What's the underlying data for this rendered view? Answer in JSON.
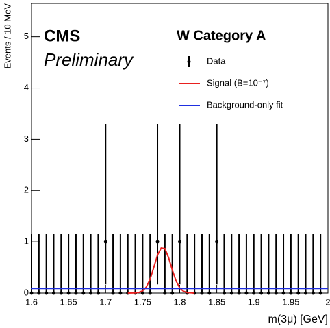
{
  "chart_data": {
    "type": "line",
    "texts": {
      "experiment": "CMS",
      "status": "Preliminary",
      "category": "W Category A"
    },
    "ylabel": "Events / 10 MeV",
    "xlabel": "m(3μ) [GeV]",
    "xlim": [
      1.6,
      2.0
    ],
    "ylim": [
      0,
      5.65
    ],
    "xticks": [
      1.6,
      1.65,
      1.7,
      1.75,
      1.8,
      1.85,
      1.9,
      1.95,
      2
    ],
    "yticks": [
      0,
      1,
      2,
      3,
      4,
      5
    ],
    "legend": "top-right",
    "series": [
      {
        "name": "Data",
        "type": "errorbar",
        "color": "#000000",
        "x": [
          1.6,
          1.61,
          1.62,
          1.63,
          1.64,
          1.65,
          1.66,
          1.67,
          1.68,
          1.69,
          1.7,
          1.71,
          1.72,
          1.73,
          1.74,
          1.75,
          1.76,
          1.77,
          1.78,
          1.79,
          1.8,
          1.81,
          1.82,
          1.83,
          1.84,
          1.85,
          1.86,
          1.87,
          1.88,
          1.89,
          1.9,
          1.91,
          1.92,
          1.93,
          1.94,
          1.95,
          1.96,
          1.97,
          1.98,
          1.99
        ],
        "values": [
          0,
          0,
          0,
          0,
          0,
          0,
          0,
          0,
          0,
          0,
          1,
          0,
          0,
          0,
          0,
          0,
          0,
          1,
          0,
          0,
          1,
          0,
          0,
          0,
          0,
          1,
          0,
          0,
          0,
          0,
          0,
          0,
          0,
          0,
          0,
          0,
          0,
          0,
          0,
          0
        ],
        "yerr_low": [
          0,
          0,
          0,
          0,
          0,
          0,
          0,
          0,
          0,
          0,
          0.83,
          0,
          0,
          0,
          0,
          0,
          0,
          0.83,
          0,
          0,
          0.83,
          0,
          0,
          0,
          0,
          0.83,
          0,
          0,
          0,
          0,
          0,
          0,
          0,
          0,
          0,
          0,
          0,
          0,
          0,
          0
        ],
        "yerr_high": [
          1.15,
          1.15,
          1.15,
          1.15,
          1.15,
          1.15,
          1.15,
          1.15,
          1.15,
          1.15,
          2.3,
          1.15,
          1.15,
          1.15,
          1.15,
          1.15,
          1.15,
          2.3,
          1.15,
          1.15,
          2.3,
          1.15,
          1.15,
          1.15,
          1.15,
          2.3,
          1.15,
          1.15,
          1.15,
          1.15,
          1.15,
          1.15,
          1.15,
          1.15,
          1.15,
          1.15,
          1.15,
          1.15,
          1.15,
          1.15
        ]
      },
      {
        "name": "Signal (B=10⁻⁷)",
        "type": "line",
        "color": "#e8201f",
        "x": [
          1.73,
          1.74,
          1.745,
          1.75,
          1.755,
          1.76,
          1.765,
          1.77,
          1.775,
          1.78,
          1.785,
          1.79,
          1.795,
          1.8,
          1.805,
          1.81,
          1.82
        ],
        "values": [
          0,
          0.003,
          0.013,
          0.044,
          0.12,
          0.27,
          0.5,
          0.74,
          0.88,
          0.87,
          0.69,
          0.45,
          0.24,
          0.1,
          0.035,
          0.01,
          0
        ]
      },
      {
        "name": "Background-only fit",
        "type": "line",
        "color": "#1f2fe0",
        "x": [
          1.6,
          2.0
        ],
        "values": [
          0.09,
          0.09
        ]
      }
    ]
  }
}
